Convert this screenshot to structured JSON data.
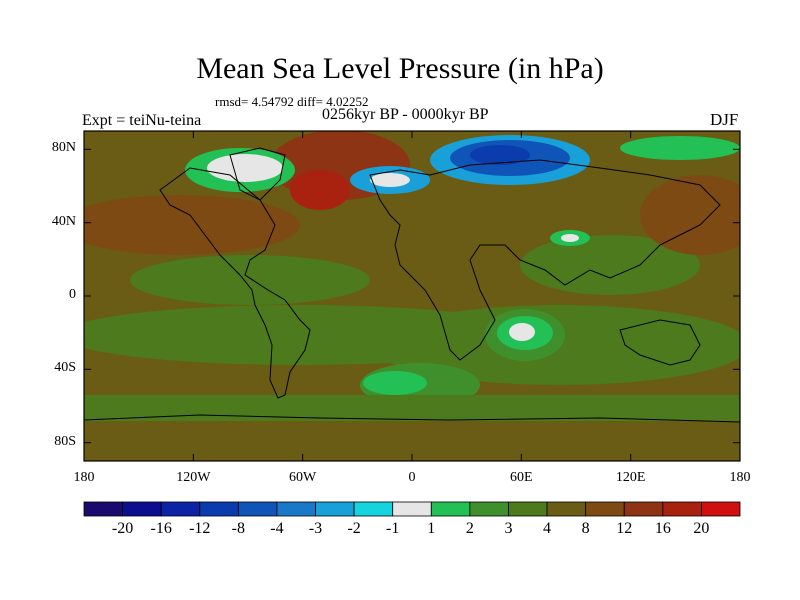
{
  "title": "Mean Sea Level Pressure (in hPa)",
  "stats": "rmsd= 4.54792 diff= 4.02252",
  "experiment": "Expt = teiNu-teina",
  "period": "0256kyr BP - 0000kyr BP",
  "season": "DJF",
  "map": {
    "lat_labels": [
      "80N",
      "40N",
      "0",
      "40S",
      "80S"
    ],
    "lat_values": [
      80,
      40,
      0,
      -40,
      -80
    ],
    "lon_labels": [
      "180",
      "120W",
      "60W",
      "0",
      "60E",
      "120E",
      "180"
    ],
    "lon_values": [
      -180,
      -120,
      -60,
      0,
      60,
      120,
      180
    ],
    "lat_range": [
      -90,
      90
    ],
    "lon_range": [
      -180,
      180
    ]
  },
  "colorbar": {
    "tick_labels": [
      "-20",
      "-16",
      "-12",
      "-8",
      "-4",
      "-3",
      "-2",
      "-1",
      "1",
      "2",
      "3",
      "4",
      "8",
      "12",
      "16",
      "20"
    ],
    "colors": [
      "#1b0a6e",
      "#0b0f8f",
      "#0c23a6",
      "#0a3cad",
      "#0f55b8",
      "#1a78c8",
      "#1aa0d8",
      "#15d4e0",
      "#e6e6e6",
      "#22c055",
      "#3f8f2d",
      "#4c7a1c",
      "#6a5c14",
      "#7d4a14",
      "#8c3414",
      "#a8220f",
      "#d01010"
    ]
  }
}
